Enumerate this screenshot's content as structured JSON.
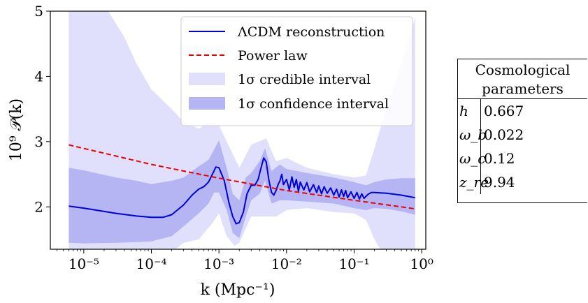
{
  "chart_data": {
    "type": "line",
    "xlabel": "k (Mpc⁻¹)",
    "ylabel": "10⁹ 𝒫(k)",
    "xscale": "log",
    "xlim": [
      3.2e-06,
      1.15
    ],
    "ylim": [
      1.35,
      5.0
    ],
    "x_ticks": [
      {
        "value": 1e-05,
        "label": "10⁻⁵"
      },
      {
        "value": 0.0001,
        "label": "10⁻⁴"
      },
      {
        "value": 0.001,
        "label": "10⁻³"
      },
      {
        "value": 0.01,
        "label": "10⁻²"
      },
      {
        "value": 0.1,
        "label": "10⁻¹"
      },
      {
        "value": 1,
        "label": "10⁰"
      }
    ],
    "y_ticks": [
      {
        "value": 2,
        "label": "2"
      },
      {
        "value": 3,
        "label": "3"
      },
      {
        "value": 4,
        "label": "4"
      },
      {
        "value": 5,
        "label": "5"
      }
    ],
    "legend_position": "top-right",
    "series": [
      {
        "name": "ΛCDM reconstruction",
        "color": "#0000dd",
        "style": "solid",
        "points": [
          [
            6e-06,
            2.01
          ],
          [
            1e-05,
            1.98
          ],
          [
            3e-05,
            1.9
          ],
          [
            6e-05,
            1.86
          ],
          [
            0.0001,
            1.84
          ],
          [
            0.00015,
            1.84
          ],
          [
            0.0002,
            1.88
          ],
          [
            0.0003,
            2.03
          ],
          [
            0.0004,
            2.18
          ],
          [
            0.0005,
            2.27
          ],
          [
            0.0006,
            2.31
          ],
          [
            0.0007,
            2.38
          ],
          [
            0.0008,
            2.5
          ],
          [
            0.0009,
            2.61
          ],
          [
            0.001,
            2.6
          ],
          [
            0.0012,
            2.4
          ],
          [
            0.0014,
            2.07
          ],
          [
            0.0016,
            1.85
          ],
          [
            0.0018,
            1.74
          ],
          [
            0.002,
            1.76
          ],
          [
            0.0023,
            1.92
          ],
          [
            0.0026,
            2.2
          ],
          [
            0.003,
            2.33
          ],
          [
            0.0034,
            2.33
          ],
          [
            0.0038,
            2.42
          ],
          [
            0.0042,
            2.6
          ],
          [
            0.0046,
            2.75
          ],
          [
            0.005,
            2.69
          ],
          [
            0.0055,
            2.4
          ],
          [
            0.006,
            2.22
          ],
          [
            0.0065,
            2.18
          ],
          [
            0.007,
            2.25
          ],
          [
            0.0075,
            2.34
          ],
          [
            0.008,
            2.4
          ],
          [
            0.0085,
            2.5
          ],
          [
            0.009,
            2.34
          ],
          [
            0.01,
            2.42
          ],
          [
            0.011,
            2.26
          ],
          [
            0.012,
            2.46
          ],
          [
            0.013,
            2.3
          ],
          [
            0.014,
            2.42
          ],
          [
            0.015,
            2.24
          ],
          [
            0.016,
            2.38
          ],
          [
            0.018,
            2.26
          ],
          [
            0.02,
            2.37
          ],
          [
            0.022,
            2.23
          ],
          [
            0.025,
            2.34
          ],
          [
            0.028,
            2.22
          ],
          [
            0.03,
            2.32
          ],
          [
            0.033,
            2.2
          ],
          [
            0.036,
            2.31
          ],
          [
            0.04,
            2.21
          ],
          [
            0.045,
            2.29
          ],
          [
            0.05,
            2.18
          ],
          [
            0.055,
            2.27
          ],
          [
            0.06,
            2.15
          ],
          [
            0.065,
            2.26
          ],
          [
            0.07,
            2.16
          ],
          [
            0.075,
            2.25
          ],
          [
            0.08,
            2.14
          ],
          [
            0.09,
            2.23
          ],
          [
            0.1,
            2.13
          ],
          [
            0.11,
            2.22
          ],
          [
            0.12,
            2.12
          ],
          [
            0.13,
            2.2
          ],
          [
            0.14,
            2.13
          ],
          [
            0.16,
            2.19
          ],
          [
            0.18,
            2.22
          ],
          [
            0.2,
            2.22
          ],
          [
            0.3,
            2.21
          ],
          [
            0.5,
            2.18
          ],
          [
            0.8,
            2.14
          ]
        ]
      },
      {
        "name": "Power law",
        "color": "#ee0000",
        "style": "dashed",
        "points": [
          [
            6e-06,
            2.95
          ],
          [
            0.0001,
            2.65
          ],
          [
            0.001,
            2.44
          ],
          [
            0.01,
            2.25
          ],
          [
            0.1,
            2.1
          ],
          [
            0.8,
            1.97
          ]
        ]
      }
    ],
    "bands": [
      {
        "name": "1σ credible interval",
        "color": "#e0e0fc",
        "upper": [
          [
            6e-06,
            5.2
          ],
          [
            1e-05,
            5.2
          ],
          [
            2e-05,
            5.1
          ],
          [
            4e-05,
            4.6
          ],
          [
            6e-05,
            4.2
          ],
          [
            0.0001,
            3.8
          ],
          [
            0.0002,
            3.5
          ],
          [
            0.0003,
            3.3
          ],
          [
            0.0005,
            3.2
          ],
          [
            0.0007,
            3.3
          ],
          [
            0.001,
            3.25
          ],
          [
            0.0013,
            3.0
          ],
          [
            0.002,
            2.6
          ],
          [
            0.003,
            2.95
          ],
          [
            0.005,
            3.05
          ],
          [
            0.007,
            2.7
          ],
          [
            0.01,
            2.75
          ],
          [
            0.02,
            2.6
          ],
          [
            0.05,
            2.5
          ],
          [
            0.1,
            2.45
          ],
          [
            0.15,
            2.48
          ],
          [
            0.2,
            2.9
          ],
          [
            0.3,
            3.5
          ],
          [
            0.5,
            4.2
          ],
          [
            0.8,
            4.9
          ]
        ],
        "lower": [
          [
            6e-06,
            1.0
          ],
          [
            1e-05,
            1.0
          ],
          [
            4e-05,
            1.0
          ],
          [
            0.0001,
            1.25
          ],
          [
            0.0002,
            1.3
          ],
          [
            0.0003,
            1.45
          ],
          [
            0.0005,
            1.5
          ],
          [
            0.0008,
            1.75
          ],
          [
            0.001,
            1.9
          ],
          [
            0.0013,
            1.55
          ],
          [
            0.0017,
            1.4
          ],
          [
            0.002,
            1.45
          ],
          [
            0.003,
            1.85
          ],
          [
            0.005,
            1.85
          ],
          [
            0.007,
            1.85
          ],
          [
            0.01,
            1.95
          ],
          [
            0.02,
            1.98
          ],
          [
            0.05,
            1.92
          ],
          [
            0.1,
            1.9
          ],
          [
            0.15,
            1.8
          ],
          [
            0.2,
            1.5
          ],
          [
            0.3,
            1.2
          ],
          [
            0.5,
            1.0
          ],
          [
            0.8,
            1.0
          ]
        ]
      },
      {
        "name": "1σ confidence interval",
        "color": "#b5b5f4",
        "upper": [
          [
            6e-06,
            2.6
          ],
          [
            1e-05,
            2.56
          ],
          [
            3e-05,
            2.45
          ],
          [
            6e-05,
            2.4
          ],
          [
            0.0001,
            2.35
          ],
          [
            0.0002,
            2.4
          ],
          [
            0.0003,
            2.45
          ],
          [
            0.0005,
            2.62
          ],
          [
            0.0007,
            2.72
          ],
          [
            0.00085,
            2.88
          ],
          [
            0.001,
            3.02
          ],
          [
            0.0013,
            2.6
          ],
          [
            0.0016,
            2.2
          ],
          [
            0.002,
            2.1
          ],
          [
            0.0025,
            2.45
          ],
          [
            0.003,
            2.52
          ],
          [
            0.004,
            2.7
          ],
          [
            0.0048,
            2.9
          ],
          [
            0.006,
            2.55
          ],
          [
            0.008,
            2.65
          ],
          [
            0.01,
            2.58
          ],
          [
            0.02,
            2.52
          ],
          [
            0.05,
            2.45
          ],
          [
            0.1,
            2.38
          ],
          [
            0.15,
            2.33
          ],
          [
            0.2,
            2.38
          ],
          [
            0.3,
            2.42
          ],
          [
            0.5,
            2.44
          ],
          [
            0.8,
            2.44
          ]
        ],
        "lower": [
          [
            6e-06,
            1.45
          ],
          [
            1e-05,
            1.44
          ],
          [
            3e-05,
            1.45
          ],
          [
            6e-05,
            1.46
          ],
          [
            0.0001,
            1.47
          ],
          [
            0.0002,
            1.55
          ],
          [
            0.0003,
            1.7
          ],
          [
            0.0005,
            1.9
          ],
          [
            0.0007,
            2.05
          ],
          [
            0.00085,
            2.22
          ],
          [
            0.001,
            2.22
          ],
          [
            0.0013,
            1.95
          ],
          [
            0.0016,
            1.6
          ],
          [
            0.002,
            1.52
          ],
          [
            0.0025,
            1.85
          ],
          [
            0.003,
            2.1
          ],
          [
            0.004,
            2.2
          ],
          [
            0.0048,
            2.4
          ],
          [
            0.006,
            2.05
          ],
          [
            0.008,
            2.1
          ],
          [
            0.01,
            2.1
          ],
          [
            0.02,
            2.08
          ],
          [
            0.05,
            2.05
          ],
          [
            0.1,
            1.98
          ],
          [
            0.15,
            1.95
          ],
          [
            0.2,
            1.98
          ],
          [
            0.3,
            1.97
          ],
          [
            0.5,
            1.93
          ],
          [
            0.8,
            1.88
          ]
        ]
      }
    ],
    "legend": [
      {
        "label": "ΛCDM reconstruction",
        "kind": "line",
        "color": "#0000dd"
      },
      {
        "label": "Power law",
        "kind": "dashed",
        "color": "#ee0000"
      },
      {
        "label": "1σ credible interval",
        "kind": "patch",
        "color": "#e0e0fc"
      },
      {
        "label": "1σ confidence interval",
        "kind": "patch",
        "color": "#b5b5f4"
      }
    ]
  },
  "table": {
    "title_line1": "Cosmological",
    "title_line2": "parameters",
    "rows": [
      {
        "symbol": "h",
        "value": "0.667"
      },
      {
        "symbol": "ω_b",
        "value": "0.022"
      },
      {
        "symbol": "ω_c",
        "value": "0.12"
      },
      {
        "symbol": "z_re",
        "value": "9.94"
      }
    ]
  }
}
